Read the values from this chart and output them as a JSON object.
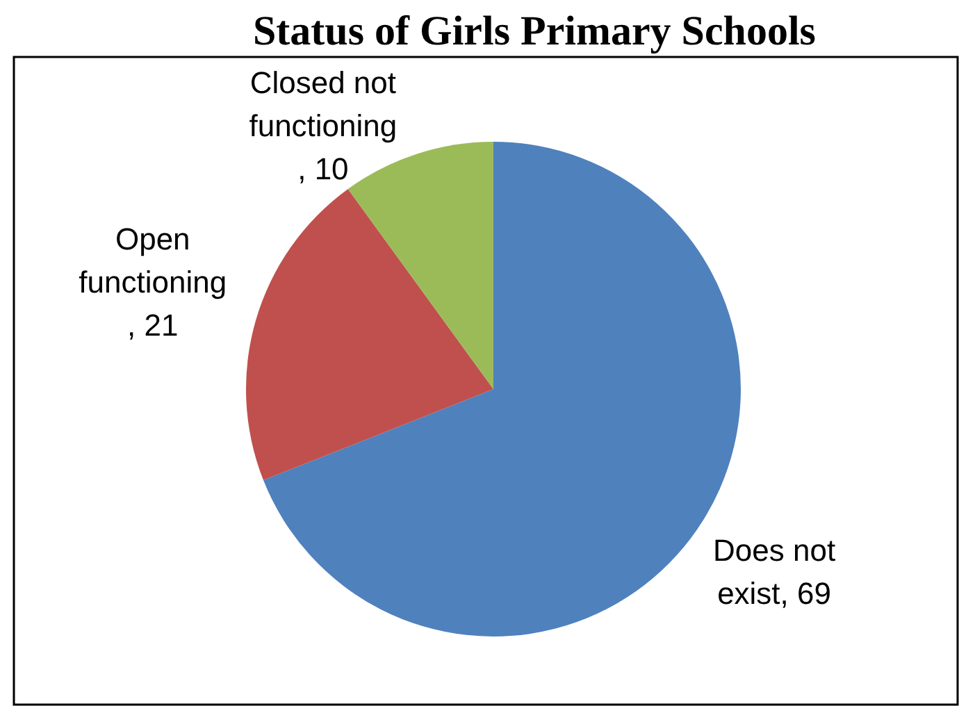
{
  "chart_data": {
    "type": "pie",
    "title": "Status of Girls Primary Schools",
    "categories": [
      "Does not exist",
      "Open functioning",
      "Closed not functioning"
    ],
    "values": [
      69,
      21,
      10
    ],
    "colors": [
      "#4f81bd",
      "#c0504d",
      "#9bbb59"
    ],
    "value_labels": [
      ", 69",
      ", 21",
      ", 10"
    ]
  }
}
